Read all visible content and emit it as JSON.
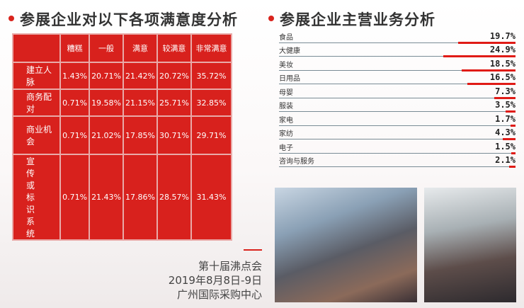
{
  "left": {
    "title": "参展企业对以下各项满意度分析",
    "headers": [
      "",
      "糟糕",
      "一般",
      "满意",
      "较满意",
      "非常满意"
    ],
    "rows": [
      {
        "label": "建立人脉",
        "values": [
          "1.43%",
          "20.71%",
          "21.42%",
          "20.72%",
          "35.72%"
        ]
      },
      {
        "label": "商务配对",
        "values": [
          "0.71%",
          "19.58%",
          "21.15%",
          "25.71%",
          "32.85%"
        ]
      },
      {
        "label": "商业机会",
        "values": [
          "0.71%",
          "21.02%",
          "17.85%",
          "30.71%",
          "29.71%"
        ]
      },
      {
        "label": "宣传或标识系统",
        "values": [
          "0.71%",
          "21.43%",
          "17.86%",
          "28.57%",
          "31.43%"
        ]
      }
    ],
    "table_color": "#d8211d"
  },
  "right": {
    "title": "参展企业主营业务分析",
    "items": [
      {
        "label": "食品",
        "value": "19.7%",
        "pct": 19.7
      },
      {
        "label": "大健康",
        "value": "24.9%",
        "pct": 24.9
      },
      {
        "label": "美妆",
        "value": "18.5%",
        "pct": 18.5
      },
      {
        "label": "日用品",
        "value": "16.5%",
        "pct": 16.5
      },
      {
        "label": "母婴",
        "value": "7.3%",
        "pct": 7.3
      },
      {
        "label": "服装",
        "value": "3.5%",
        "pct": 3.5
      },
      {
        "label": "家电",
        "value": "1.7%",
        "pct": 1.7
      },
      {
        "label": "家纺",
        "value": "4.3%",
        "pct": 4.3
      },
      {
        "label": "电子",
        "value": "1.5%",
        "pct": 1.5
      },
      {
        "label": "咨询与服务",
        "value": "2.1%",
        "pct": 2.1
      }
    ],
    "bar_color": "#e01b16"
  },
  "event": {
    "name": "第十届沸点会",
    "date": "2019年8月8日-9日",
    "venue": "广州国际采购中心"
  }
}
